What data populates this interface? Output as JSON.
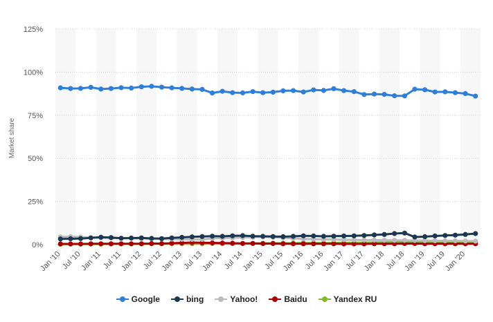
{
  "chart_data": {
    "type": "line",
    "title": "",
    "xlabel": "",
    "ylabel": "Market share",
    "ylim": [
      0,
      125
    ],
    "y_ticks": [
      "0%",
      "25%",
      "50%",
      "75%",
      "100%",
      "125%"
    ],
    "y_tick_values": [
      0,
      25,
      50,
      75,
      100,
      125
    ],
    "x_tick_labels": [
      "Jan '10",
      "Jul '10",
      "Jan '11",
      "Jul '11",
      "Jan '12",
      "Jul '12",
      "Jan '13",
      "Jul '13",
      "Jan '14",
      "Jul '14",
      "Jan '15",
      "Jul '15",
      "Jan '16",
      "Jul '16",
      "Jan '17",
      "Jul '17",
      "Jan '18",
      "Jul '18",
      "Jan '19",
      "Jul '19",
      "Jan '20"
    ],
    "grid": true,
    "legend_position": "bottom",
    "series": [
      {
        "name": "Google",
        "color": "#2f7ed8",
        "values": [
          90.9,
          90.5,
          90.6,
          91.2,
          90.2,
          90.5,
          91.0,
          90.8,
          91.5,
          91.8,
          91.3,
          90.9,
          90.6,
          90.2,
          90.0,
          87.9,
          88.9,
          88.1,
          88.0,
          88.7,
          88.1,
          88.4,
          89.2,
          89.3,
          88.5,
          89.7,
          89.4,
          90.4,
          89.3,
          88.7,
          87.0,
          87.3,
          87.1,
          86.3,
          86.2,
          90.1,
          89.8,
          88.5,
          88.6,
          88.1,
          87.6,
          86.1
        ]
      },
      {
        "name": "bing",
        "color": "#1c3750",
        "values": [
          3.3,
          3.4,
          3.5,
          3.9,
          4.3,
          4.1,
          3.7,
          3.8,
          3.9,
          3.6,
          3.5,
          3.9,
          4.2,
          4.5,
          4.7,
          4.9,
          4.8,
          5.1,
          5.2,
          4.9,
          4.8,
          4.7,
          4.6,
          4.8,
          5.1,
          5.0,
          4.8,
          4.9,
          5.0,
          5.1,
          5.3,
          5.6,
          5.9,
          6.4,
          6.7,
          4.4,
          4.6,
          5.0,
          5.3,
          5.5,
          5.9,
          6.4
        ]
      },
      {
        "name": "Yahoo!",
        "color": "#bbbbbb",
        "values": [
          4.5,
          4.6,
          4.4,
          4.1,
          3.9,
          3.8,
          3.7,
          3.6,
          3.5,
          3.4,
          3.3,
          3.2,
          3.1,
          3.0,
          3.0,
          3.6,
          3.8,
          4.0,
          4.1,
          4.3,
          4.5,
          4.3,
          3.9,
          3.6,
          3.3,
          3.1,
          3.0,
          2.9,
          2.8,
          2.7,
          2.6,
          2.6,
          2.5,
          2.5,
          2.5,
          2.4,
          2.3,
          2.2,
          2.2,
          2.2,
          2.1,
          2.0
        ]
      },
      {
        "name": "Baidu",
        "color": "#aa0000",
        "values": [
          0.4,
          0.4,
          0.4,
          0.5,
          0.5,
          0.5,
          0.5,
          0.5,
          0.5,
          0.6,
          0.6,
          0.8,
          1.0,
          1.2,
          1.1,
          1.0,
          0.9,
          0.8,
          0.7,
          0.7,
          0.6,
          0.6,
          0.5,
          0.5,
          0.5,
          0.5,
          0.5,
          0.5,
          0.4,
          0.4,
          0.4,
          0.5,
          0.5,
          0.5,
          0.6,
          0.6,
          0.5,
          0.5,
          0.5,
          0.5,
          0.5,
          0.5
        ]
      },
      {
        "name": "Yandex RU",
        "color": "#7fba2a",
        "values": [
          0.2,
          0.3,
          0.3,
          0.3,
          0.3,
          0.4,
          0.4,
          0.4,
          0.4,
          0.5,
          0.5,
          0.5,
          0.5,
          0.5,
          0.5,
          0.6,
          0.6,
          0.6,
          0.6,
          0.7,
          0.7,
          0.8,
          0.8,
          0.8,
          0.9,
          0.9,
          0.9,
          1.0,
          1.0,
          1.1,
          1.1,
          1.2,
          1.3,
          1.4,
          1.4,
          1.3,
          1.2,
          1.2,
          1.1,
          1.1,
          1.1,
          1.1
        ]
      }
    ]
  }
}
